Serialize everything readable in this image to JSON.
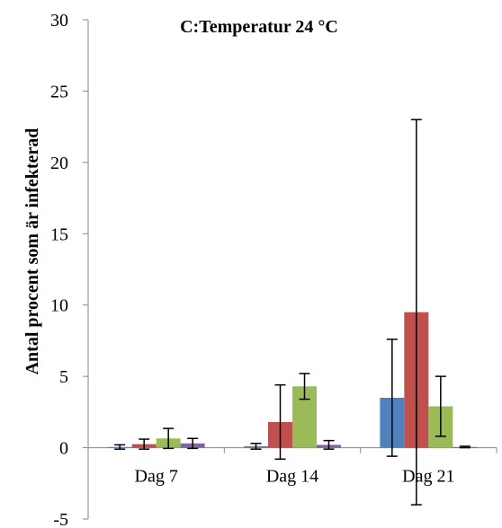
{
  "chart_data": {
    "type": "bar",
    "title": "C:Temperatur 24 °C",
    "xlabel": "",
    "ylabel": "Antal procent som är infekterad",
    "ylim": [
      -5,
      30
    ],
    "yticks": [
      "-5",
      "0",
      "5",
      "10",
      "15",
      "20",
      "25",
      "30"
    ],
    "categories": [
      "Dag 7",
      "Dag 14",
      "Dag 21"
    ],
    "grid": false,
    "legend": "none",
    "series": [
      {
        "color": "#4F81BD",
        "values": [
          0.05,
          0.1,
          3.5
        ],
        "errors": [
          0.15,
          0.2,
          4.1
        ]
      },
      {
        "color": "#C0504D",
        "values": [
          0.25,
          1.8,
          9.5
        ],
        "errors": [
          0.35,
          2.6,
          13.5
        ]
      },
      {
        "color": "#9BBB59",
        "values": [
          0.65,
          4.3,
          2.9
        ],
        "errors": [
          0.7,
          0.9,
          2.1
        ]
      },
      {
        "color": "#8064A2",
        "values": [
          0.3,
          0.2,
          0.05
        ],
        "errors": [
          0.35,
          0.3,
          0.05
        ]
      }
    ]
  }
}
